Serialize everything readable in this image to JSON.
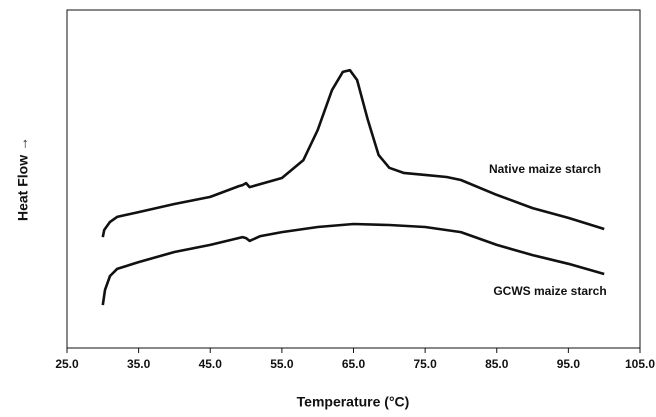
{
  "chart_data": {
    "type": "line",
    "x_label": "Temperature (°C)",
    "y_label": "Heat Flow →",
    "xlim": [
      25,
      105
    ],
    "ylim": [
      0,
      100
    ],
    "xticks": [
      {
        "value": 25,
        "label": "25.0"
      },
      {
        "value": 35,
        "label": "35.0"
      },
      {
        "value": 45,
        "label": "45.0"
      },
      {
        "value": 55,
        "label": "55.0"
      },
      {
        "value": 65,
        "label": "65.0"
      },
      {
        "value": 75,
        "label": "75.0"
      },
      {
        "value": 85,
        "label": "85.0"
      },
      {
        "value": 95,
        "label": "95.0"
      },
      {
        "value": 105,
        "label": "105.0"
      }
    ],
    "series": [
      {
        "name": "Native maize starch",
        "color": "#111111",
        "x": [
          30,
          30.2,
          31,
          32,
          35,
          40,
          45,
          49,
          49.5,
          50,
          50.5,
          51,
          55,
          58,
          60,
          62,
          63.5,
          64.5,
          65.5,
          67,
          68.5,
          70,
          72,
          75,
          78,
          80,
          85,
          90,
          95,
          100
        ],
        "values": [
          32.8,
          34.9,
          37.3,
          38.8,
          40.2,
          42.6,
          44.7,
          47.9,
          48.2,
          48.8,
          47.6,
          47.9,
          50.3,
          55.6,
          64.5,
          76.3,
          81.7,
          82.2,
          79.3,
          67.5,
          57.1,
          53.3,
          51.8,
          51.2,
          50.6,
          49.7,
          45.3,
          41.4,
          38.5,
          35.2
        ]
      },
      {
        "name": "GCWS maize starch",
        "color": "#111111",
        "x": [
          30,
          30.3,
          31,
          32,
          35,
          40,
          45,
          49.5,
          50,
          50.5,
          52,
          55,
          60,
          65,
          70,
          75,
          80,
          85,
          90,
          95,
          100
        ],
        "values": [
          12.7,
          17.2,
          21.3,
          23.4,
          25.4,
          28.4,
          30.5,
          32.8,
          32.5,
          31.7,
          33.1,
          34.3,
          35.8,
          36.7,
          36.4,
          35.8,
          34.3,
          30.5,
          27.5,
          24.9,
          21.9
        ]
      }
    ]
  }
}
